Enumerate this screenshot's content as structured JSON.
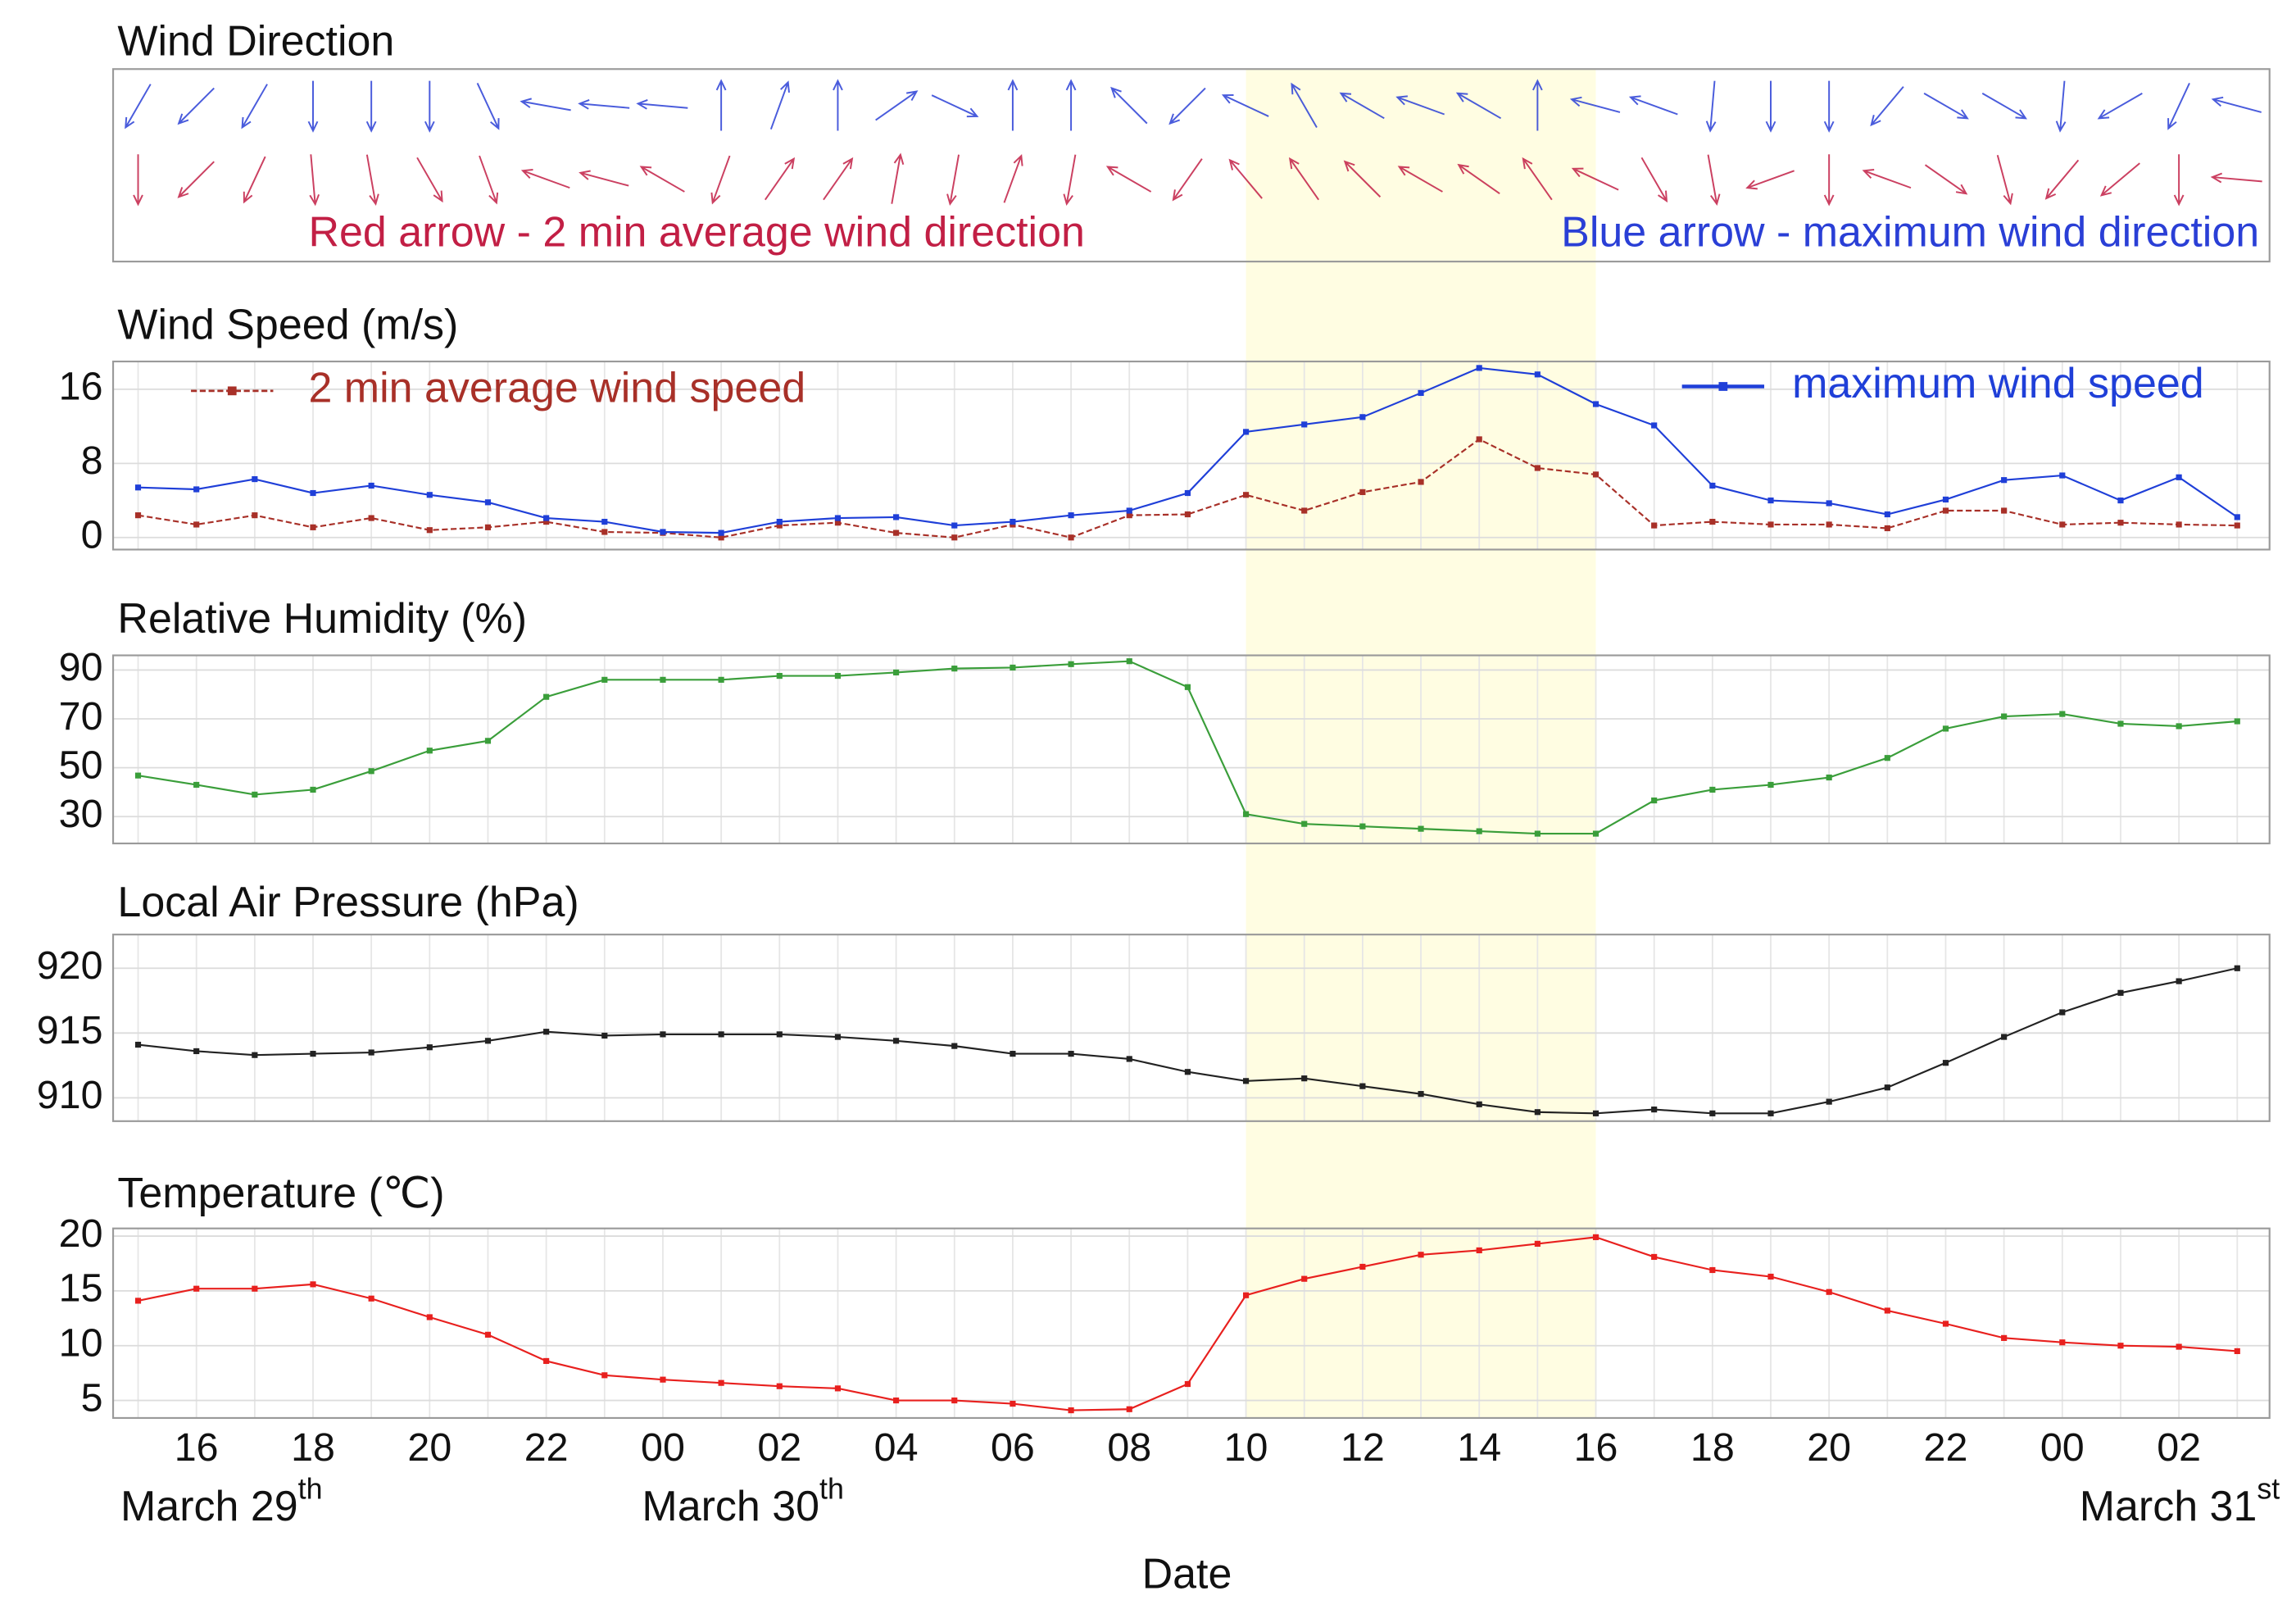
{
  "chart_data": [
    {
      "type": "arrows",
      "title": "Wind Direction",
      "series": [
        {
          "name": "Blue arrow - maximum wind direction",
          "color": "#2a3fd6",
          "values": [
            210,
            225,
            210,
            180,
            180,
            180,
            155,
            280,
            275,
            275,
            0,
            20,
            0,
            55,
            115,
            0,
            0,
            315,
            225,
            295,
            330,
            300,
            290,
            300,
            0,
            285,
            290,
            185,
            180,
            180,
            220,
            120,
            120,
            185,
            240,
            205,
            285
          ]
        },
        {
          "name": "Red arrow - 2 min average wind direction",
          "color": "#c21f45",
          "values": [
            180,
            225,
            205,
            175,
            170,
            150,
            160,
            290,
            285,
            300,
            200,
            35,
            35,
            10,
            190,
            20,
            190,
            300,
            215,
            320,
            325,
            315,
            300,
            305,
            325,
            295,
            150,
            170,
            250,
            180,
            290,
            125,
            165,
            220,
            230,
            180,
            275
          ]
        }
      ]
    },
    {
      "type": "line",
      "title": "Wind Speed (m/s)",
      "ylim": [
        -1.3,
        19
      ],
      "yticks": [
        0,
        8,
        16
      ],
      "grid": true,
      "series": [
        {
          "name": "2 min average wind speed",
          "color": "#a83028",
          "dashed": true,
          "values": [
            2.4,
            1.4,
            2.4,
            1.1,
            2.1,
            0.8,
            1.1,
            1.7,
            0.6,
            0.5,
            0,
            1.3,
            1.6,
            0.5,
            0,
            1.4,
            0,
            2.4,
            2.5,
            4.6,
            2.9,
            4.9,
            6.0,
            10.6,
            7.5,
            6.8,
            1.3,
            1.7,
            1.4,
            1.4,
            1.0,
            2.9,
            2.9,
            1.4,
            1.6,
            1.4,
            1.3
          ]
        },
        {
          "name": "maximum wind speed",
          "color": "#1f3fd8",
          "values": [
            5.4,
            5.2,
            6.3,
            4.8,
            5.6,
            4.6,
            3.8,
            2.1,
            1.7,
            0.6,
            0.5,
            1.7,
            2.1,
            2.2,
            1.3,
            1.7,
            2.4,
            2.9,
            4.8,
            11.4,
            12.2,
            13.0,
            15.6,
            18.3,
            17.6,
            14.4,
            12.1,
            5.6,
            4.0,
            3.7,
            2.5,
            4.1,
            6.2,
            6.7,
            4.0,
            6.5,
            2.2
          ]
        }
      ]
    },
    {
      "type": "line",
      "title": "Relative Humidity (%)",
      "ylim": [
        19,
        96
      ],
      "yticks": [
        30,
        50,
        70,
        90
      ],
      "grid": true,
      "series": [
        {
          "color": "#3a9e3a",
          "values": [
            46.8,
            43,
            39,
            41,
            48.6,
            57,
            61,
            79,
            86,
            86,
            86,
            87.6,
            87.6,
            89,
            90.6,
            91,
            92.4,
            93.6,
            83,
            31,
            27,
            26,
            25,
            24,
            23,
            23,
            36.6,
            41,
            43,
            46,
            54,
            66,
            71,
            72,
            68,
            67,
            69
          ]
        }
      ]
    },
    {
      "type": "line",
      "title": "Local Air Pressure (hPa)",
      "ylim": [
        908.2,
        922.6
      ],
      "yticks": [
        910,
        915,
        920
      ],
      "grid": true,
      "series": [
        {
          "color": "#222222",
          "values": [
            914.1,
            913.6,
            913.3,
            913.4,
            913.5,
            913.9,
            914.4,
            915.1,
            914.8,
            914.9,
            914.9,
            914.9,
            914.7,
            914.4,
            914.0,
            913.4,
            913.4,
            913.0,
            912.0,
            911.3,
            911.5,
            910.9,
            910.3,
            909.5,
            908.9,
            908.8,
            909.1,
            908.8,
            908.8,
            909.7,
            910.8,
            912.7,
            914.7,
            916.6,
            918.1,
            919.0,
            920.0
          ]
        }
      ]
    },
    {
      "type": "line",
      "title": "Temperature (℃)",
      "ylim": [
        3.4,
        20.7
      ],
      "yticks": [
        5,
        10,
        15,
        20
      ],
      "grid": true,
      "series": [
        {
          "color": "#e8201e",
          "values": [
            14.1,
            15.2,
            15.2,
            15.6,
            14.3,
            12.6,
            11.0,
            8.6,
            7.3,
            6.9,
            6.6,
            6.3,
            6.1,
            5.0,
            5.0,
            4.7,
            4.1,
            4.2,
            6.5,
            14.6,
            16.1,
            17.2,
            18.3,
            18.7,
            19.3,
            19.9,
            18.1,
            16.9,
            16.3,
            14.9,
            13.2,
            12.0,
            10.7,
            10.3,
            10.0,
            9.9,
            9.5
          ]
        }
      ]
    }
  ],
  "shared": {
    "categories": [
      null,
      "16",
      null,
      "18",
      null,
      "20",
      null,
      "22",
      null,
      "00",
      null,
      "02",
      null,
      "04",
      null,
      "06",
      null,
      "08",
      null,
      "10",
      null,
      "12",
      null,
      "14",
      null,
      "16",
      null,
      "18",
      null,
      "20",
      null,
      "22",
      null,
      "00",
      null,
      "02",
      null
    ],
    "dates": [
      {
        "text": "March 29",
        "sup": "th"
      },
      {
        "text": "March 30",
        "sup": "th"
      },
      {
        "text": "March 31",
        "sup": "st"
      }
    ],
    "xlabel": "Date",
    "highlight": [
      19,
      25
    ],
    "highlight_color": "#fffde2"
  }
}
